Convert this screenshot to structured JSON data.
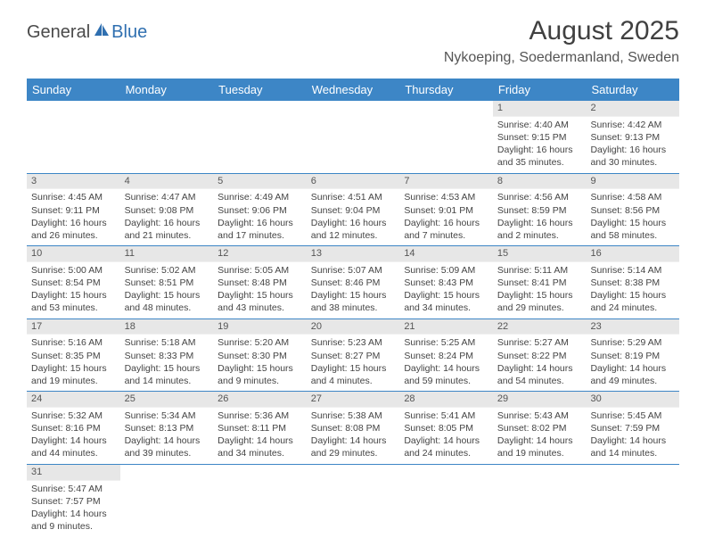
{
  "logo": {
    "text1": "General",
    "text2": "Blue"
  },
  "header": {
    "month_title": "August 2025",
    "location": "Nykoeping, Soedermanland, Sweden"
  },
  "calendar": {
    "header_bg": "#3d86c6",
    "header_fg": "#ffffff",
    "daynum_bg": "#e7e7e7",
    "border_color": "#3d86c6",
    "days_of_week": [
      "Sunday",
      "Monday",
      "Tuesday",
      "Wednesday",
      "Thursday",
      "Friday",
      "Saturday"
    ],
    "weeks": [
      [
        null,
        null,
        null,
        null,
        null,
        {
          "n": "1",
          "sunrise": "Sunrise: 4:40 AM",
          "sunset": "Sunset: 9:15 PM",
          "daylight": "Daylight: 16 hours and 35 minutes."
        },
        {
          "n": "2",
          "sunrise": "Sunrise: 4:42 AM",
          "sunset": "Sunset: 9:13 PM",
          "daylight": "Daylight: 16 hours and 30 minutes."
        }
      ],
      [
        {
          "n": "3",
          "sunrise": "Sunrise: 4:45 AM",
          "sunset": "Sunset: 9:11 PM",
          "daylight": "Daylight: 16 hours and 26 minutes."
        },
        {
          "n": "4",
          "sunrise": "Sunrise: 4:47 AM",
          "sunset": "Sunset: 9:08 PM",
          "daylight": "Daylight: 16 hours and 21 minutes."
        },
        {
          "n": "5",
          "sunrise": "Sunrise: 4:49 AM",
          "sunset": "Sunset: 9:06 PM",
          "daylight": "Daylight: 16 hours and 17 minutes."
        },
        {
          "n": "6",
          "sunrise": "Sunrise: 4:51 AM",
          "sunset": "Sunset: 9:04 PM",
          "daylight": "Daylight: 16 hours and 12 minutes."
        },
        {
          "n": "7",
          "sunrise": "Sunrise: 4:53 AM",
          "sunset": "Sunset: 9:01 PM",
          "daylight": "Daylight: 16 hours and 7 minutes."
        },
        {
          "n": "8",
          "sunrise": "Sunrise: 4:56 AM",
          "sunset": "Sunset: 8:59 PM",
          "daylight": "Daylight: 16 hours and 2 minutes."
        },
        {
          "n": "9",
          "sunrise": "Sunrise: 4:58 AM",
          "sunset": "Sunset: 8:56 PM",
          "daylight": "Daylight: 15 hours and 58 minutes."
        }
      ],
      [
        {
          "n": "10",
          "sunrise": "Sunrise: 5:00 AM",
          "sunset": "Sunset: 8:54 PM",
          "daylight": "Daylight: 15 hours and 53 minutes."
        },
        {
          "n": "11",
          "sunrise": "Sunrise: 5:02 AM",
          "sunset": "Sunset: 8:51 PM",
          "daylight": "Daylight: 15 hours and 48 minutes."
        },
        {
          "n": "12",
          "sunrise": "Sunrise: 5:05 AM",
          "sunset": "Sunset: 8:48 PM",
          "daylight": "Daylight: 15 hours and 43 minutes."
        },
        {
          "n": "13",
          "sunrise": "Sunrise: 5:07 AM",
          "sunset": "Sunset: 8:46 PM",
          "daylight": "Daylight: 15 hours and 38 minutes."
        },
        {
          "n": "14",
          "sunrise": "Sunrise: 5:09 AM",
          "sunset": "Sunset: 8:43 PM",
          "daylight": "Daylight: 15 hours and 34 minutes."
        },
        {
          "n": "15",
          "sunrise": "Sunrise: 5:11 AM",
          "sunset": "Sunset: 8:41 PM",
          "daylight": "Daylight: 15 hours and 29 minutes."
        },
        {
          "n": "16",
          "sunrise": "Sunrise: 5:14 AM",
          "sunset": "Sunset: 8:38 PM",
          "daylight": "Daylight: 15 hours and 24 minutes."
        }
      ],
      [
        {
          "n": "17",
          "sunrise": "Sunrise: 5:16 AM",
          "sunset": "Sunset: 8:35 PM",
          "daylight": "Daylight: 15 hours and 19 minutes."
        },
        {
          "n": "18",
          "sunrise": "Sunrise: 5:18 AM",
          "sunset": "Sunset: 8:33 PM",
          "daylight": "Daylight: 15 hours and 14 minutes."
        },
        {
          "n": "19",
          "sunrise": "Sunrise: 5:20 AM",
          "sunset": "Sunset: 8:30 PM",
          "daylight": "Daylight: 15 hours and 9 minutes."
        },
        {
          "n": "20",
          "sunrise": "Sunrise: 5:23 AM",
          "sunset": "Sunset: 8:27 PM",
          "daylight": "Daylight: 15 hours and 4 minutes."
        },
        {
          "n": "21",
          "sunrise": "Sunrise: 5:25 AM",
          "sunset": "Sunset: 8:24 PM",
          "daylight": "Daylight: 14 hours and 59 minutes."
        },
        {
          "n": "22",
          "sunrise": "Sunrise: 5:27 AM",
          "sunset": "Sunset: 8:22 PM",
          "daylight": "Daylight: 14 hours and 54 minutes."
        },
        {
          "n": "23",
          "sunrise": "Sunrise: 5:29 AM",
          "sunset": "Sunset: 8:19 PM",
          "daylight": "Daylight: 14 hours and 49 minutes."
        }
      ],
      [
        {
          "n": "24",
          "sunrise": "Sunrise: 5:32 AM",
          "sunset": "Sunset: 8:16 PM",
          "daylight": "Daylight: 14 hours and 44 minutes."
        },
        {
          "n": "25",
          "sunrise": "Sunrise: 5:34 AM",
          "sunset": "Sunset: 8:13 PM",
          "daylight": "Daylight: 14 hours and 39 minutes."
        },
        {
          "n": "26",
          "sunrise": "Sunrise: 5:36 AM",
          "sunset": "Sunset: 8:11 PM",
          "daylight": "Daylight: 14 hours and 34 minutes."
        },
        {
          "n": "27",
          "sunrise": "Sunrise: 5:38 AM",
          "sunset": "Sunset: 8:08 PM",
          "daylight": "Daylight: 14 hours and 29 minutes."
        },
        {
          "n": "28",
          "sunrise": "Sunrise: 5:41 AM",
          "sunset": "Sunset: 8:05 PM",
          "daylight": "Daylight: 14 hours and 24 minutes."
        },
        {
          "n": "29",
          "sunrise": "Sunrise: 5:43 AM",
          "sunset": "Sunset: 8:02 PM",
          "daylight": "Daylight: 14 hours and 19 minutes."
        },
        {
          "n": "30",
          "sunrise": "Sunrise: 5:45 AM",
          "sunset": "Sunset: 7:59 PM",
          "daylight": "Daylight: 14 hours and 14 minutes."
        }
      ],
      [
        {
          "n": "31",
          "sunrise": "Sunrise: 5:47 AM",
          "sunset": "Sunset: 7:57 PM",
          "daylight": "Daylight: 14 hours and 9 minutes."
        },
        null,
        null,
        null,
        null,
        null,
        null
      ]
    ]
  }
}
